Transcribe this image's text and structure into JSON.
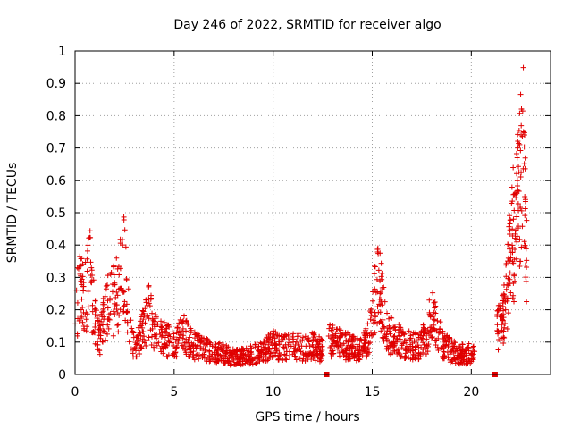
{
  "chart_data": {
    "type": "scatter",
    "title": "Day 246 of 2022, SRMTID for receiver algo",
    "xlabel": "GPS time / hours",
    "ylabel": "SRMTID / TECUs",
    "xlim": [
      0,
      24
    ],
    "ylim": [
      0,
      1
    ],
    "xticks": [
      0,
      5,
      10,
      15,
      20
    ],
    "xtick_labels": [
      "0",
      "5",
      "10",
      "15",
      "20"
    ],
    "yticks": [
      0,
      0.1,
      0.2,
      0.3,
      0.4,
      0.5,
      0.6,
      0.7,
      0.8,
      0.9,
      1
    ],
    "ytick_labels": [
      "0",
      "0.1",
      "0.2",
      "0.3",
      "0.4",
      "0.5",
      "0.6",
      "0.7",
      "0.8",
      "0.9",
      "1"
    ],
    "grid": true,
    "marker": "plus",
    "color": "#e00000",
    "zero_markers_x": [
      12.7,
      21.2
    ],
    "envelope_hours": [
      0,
      0.25,
      0.5,
      0.75,
      1.0,
      1.25,
      1.5,
      1.75,
      2.0,
      2.25,
      2.5,
      2.75,
      3.0,
      3.25,
      3.5,
      3.75,
      4.0,
      4.5,
      5.0,
      5.5,
      6.0,
      6.5,
      7.0,
      7.5,
      8.0,
      8.5,
      9.0,
      9.5,
      10.0,
      10.5,
      11.0,
      11.5,
      12.0,
      12.5
    ],
    "envelope_values": [
      0.22,
      0.3,
      0.25,
      0.35,
      0.18,
      0.12,
      0.2,
      0.26,
      0.25,
      0.3,
      0.38,
      0.15,
      0.1,
      0.12,
      0.18,
      0.22,
      0.14,
      0.12,
      0.11,
      0.14,
      0.1,
      0.09,
      0.08,
      0.07,
      0.06,
      0.06,
      0.07,
      0.08,
      0.1,
      0.09,
      0.1,
      0.09,
      0.1,
      0.08
    ],
    "segment2_hours": [
      12.8,
      13.2,
      13.6,
      14.0,
      14.4,
      14.8,
      15.0,
      15.2,
      15.4,
      15.6,
      15.8,
      16.2,
      16.6,
      17.0,
      17.4,
      17.8,
      18.0,
      18.2,
      18.6,
      19.0,
      19.4,
      19.8,
      20.2
    ],
    "segment2_values": [
      0.12,
      0.11,
      0.1,
      0.09,
      0.08,
      0.12,
      0.2,
      0.3,
      0.28,
      0.2,
      0.14,
      0.12,
      0.11,
      0.1,
      0.1,
      0.14,
      0.22,
      0.16,
      0.1,
      0.08,
      0.07,
      0.07,
      0.08
    ],
    "segment3_hours": [
      21.3,
      21.5,
      21.7,
      21.9,
      22.0,
      22.2,
      22.4,
      22.5,
      22.6,
      22.7,
      22.8
    ],
    "segment3_values": [
      0.15,
      0.18,
      0.22,
      0.35,
      0.45,
      0.5,
      0.6,
      0.75,
      0.85,
      0.6,
      0.35
    ]
  }
}
